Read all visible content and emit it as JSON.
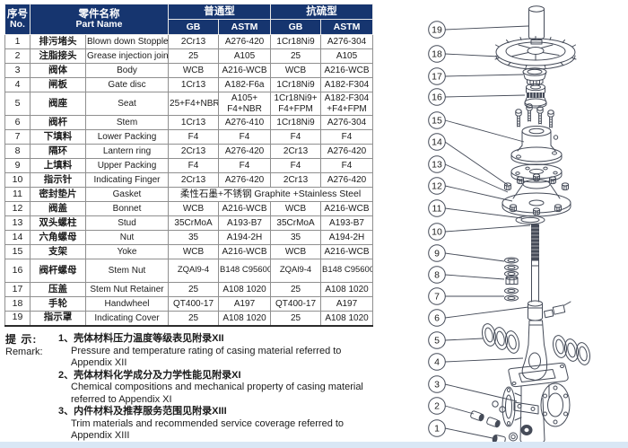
{
  "colors": {
    "header_bg": "#16356f",
    "header_text": "#ffffff",
    "table_border": "#2b2b2b",
    "grid_line": "#8f8f8f",
    "diagram_line": "#454b58",
    "bottom_strip": "#d9e7f5"
  },
  "table": {
    "header": {
      "no_cn": "序号",
      "no_en": "No.",
      "name_cn": "零件名称",
      "name_en": "Part Name",
      "normal_type": "普通型",
      "sulfur_type": "抗硫型",
      "gb": "GB",
      "astm": "ASTM"
    },
    "rows": [
      {
        "no": "1",
        "cn": "排污堵头",
        "en": "Blown down Stopple",
        "gb1": "2Cr13",
        "astm1": "A276-420",
        "gb2": "1Cr18Ni9",
        "astm2": "A276-304"
      },
      {
        "no": "2",
        "cn": "注脂接头",
        "en": "Grease injection joint",
        "gb1": "25",
        "astm1": "A105",
        "gb2": "25",
        "astm2": "A105"
      },
      {
        "no": "3",
        "cn": "阀体",
        "en": "Body",
        "gb1": "WCB",
        "astm1": "A216-WCB",
        "gb2": "WCB",
        "astm2": "A216-WCB"
      },
      {
        "no": "4",
        "cn": "闸板",
        "en": "Gate disc",
        "gb1": "1Cr13",
        "astm1": "A182-F6a",
        "gb2": "1Cr18Ni9",
        "astm2": "A182-F304"
      },
      {
        "no": "5",
        "cn": "阀座",
        "en": "Seat",
        "gb1": "25+F4+NBR",
        "astm1": "A105+ F4+NBR",
        "gb2": "1Cr18Ni9+ F4+FPM",
        "astm2": "A182-F304 +F4+FPM"
      },
      {
        "no": "6",
        "cn": "阀杆",
        "en": "Stem",
        "gb1": "1Cr13",
        "astm1": "A276-410",
        "gb2": "1Cr18Ni9",
        "astm2": "A276-304"
      },
      {
        "no": "7",
        "cn": "下填料",
        "en": "Lower Packing",
        "gb1": "F4",
        "astm1": "F4",
        "gb2": "F4",
        "astm2": "F4"
      },
      {
        "no": "8",
        "cn": "隔环",
        "en": "Lantern ring",
        "gb1": "2Cr13",
        "astm1": "A276-420",
        "gb2": "2Cr13",
        "astm2": "A276-420"
      },
      {
        "no": "9",
        "cn": "上填料",
        "en": "Upper Packing",
        "gb1": "F4",
        "astm1": "F4",
        "gb2": "F4",
        "astm2": "F4"
      },
      {
        "no": "10",
        "cn": "指示针",
        "en": "Indicating Finger",
        "gb1": "2Cr13",
        "astm1": "A276-420",
        "gb2": "2Cr13",
        "astm2": "A276-420"
      },
      {
        "no": "11",
        "cn": "密封垫片",
        "en": "Gasket",
        "span": "柔性石墨+不锈钢 Graphite +Stainless Steel"
      },
      {
        "no": "12",
        "cn": "阀盖",
        "en": "Bonnet",
        "gb1": "WCB",
        "astm1": "A216-WCB",
        "gb2": "WCB",
        "astm2": "A216-WCB"
      },
      {
        "no": "13",
        "cn": "双头螺柱",
        "en": "Stud",
        "gb1": "35CrMoA",
        "astm1": "A193-B7",
        "gb2": "35CrMoA",
        "astm2": "A193-B7"
      },
      {
        "no": "14",
        "cn": "六角螺母",
        "en": "Nut",
        "gb1": "35",
        "astm1": "A194-2H",
        "gb2": "35",
        "astm2": "A194-2H"
      },
      {
        "no": "15",
        "cn": "支架",
        "en": "Yoke",
        "gb1": "WCB",
        "astm1": "A216-WCB",
        "gb2": "WCB",
        "astm2": "A216-WCB"
      },
      {
        "no": "16",
        "cn": "阀杆螺母",
        "en": "Stem Nut",
        "gb1": "ZQAl9-4",
        "astm1": "B148 C95600",
        "gb2": "ZQAl9-4",
        "astm2": "B148 C95600"
      },
      {
        "no": "17",
        "cn": "压盖",
        "en": "Stem Nut Retainer",
        "gb1": "25",
        "astm1": "A108 1020",
        "gb2": "25",
        "astm2": "A108 1020"
      },
      {
        "no": "18",
        "cn": "手轮",
        "en": "Handwheel",
        "gb1": "QT400-17",
        "astm1": "A197",
        "gb2": "QT400-17",
        "astm2": "A197"
      },
      {
        "no": "19",
        "cn": "指示罩",
        "en": "Indicating Cover",
        "gb1": "25",
        "astm1": "A108 1020",
        "gb2": "25",
        "astm2": "A108 1020"
      }
    ]
  },
  "remark": {
    "label_cn": "提 示:",
    "label_en": "Remark:",
    "items": [
      {
        "cn": "1、壳体材料压力温度等级表见附录XII",
        "en": [
          "Pressure and temperature rating of casing material referred to",
          "Appendix XII"
        ]
      },
      {
        "cn": "2、壳体材料化学成分及力学性能见附录XI",
        "en": [
          "Chemical compositions and mechanical property of casing material",
          "referred to Appendix XI"
        ]
      },
      {
        "cn": "3、内件材料及推荐服务范围见附录XIII",
        "en": [
          "Trim materials and recommended service coverage referred to",
          "Appendix XIII"
        ]
      }
    ]
  },
  "diagram": {
    "callouts": [
      "19",
      "18",
      "17",
      "16",
      "15",
      "14",
      "13",
      "12",
      "11",
      "10",
      "9",
      "8",
      "7",
      "6",
      "5",
      "4",
      "3",
      "2",
      "1"
    ]
  }
}
